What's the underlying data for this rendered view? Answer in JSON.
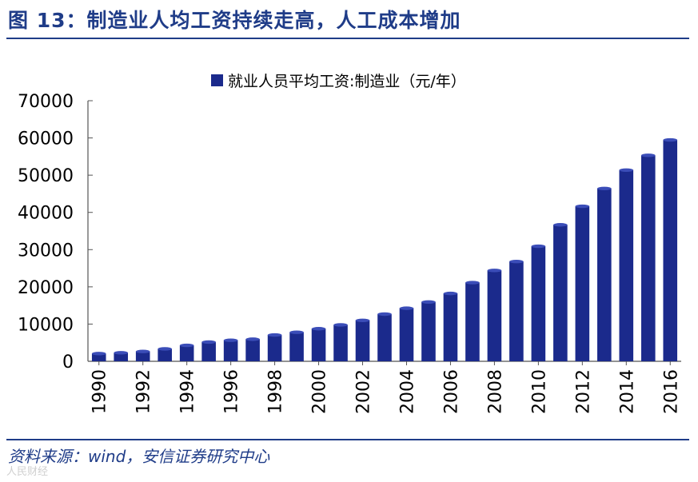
{
  "figure": {
    "title": "图 13：制造业人均工资持续走高，人工成本增加",
    "source": "资料来源：wind，安信证券研究中心",
    "watermark": "人民财经"
  },
  "colors": {
    "bar": "#1b2a8c",
    "title": "#1f3c88",
    "axis": "#555555"
  },
  "chart_data": {
    "type": "bar",
    "title": "",
    "xlabel": "",
    "ylabel": "",
    "legend": {
      "position": "top",
      "entries": [
        "就业人员平均工资:制造业（元/年）"
      ]
    },
    "ylim": [
      0,
      70000
    ],
    "yticks": [
      "0",
      "10000",
      "20000",
      "30000",
      "40000",
      "50000",
      "60000",
      "70000"
    ],
    "grid": false,
    "categories": [
      "1990",
      "1991",
      "1992",
      "1993",
      "1994",
      "1995",
      "1996",
      "1997",
      "1998",
      "1999",
      "2000",
      "2001",
      "2002",
      "2003",
      "2004",
      "2005",
      "2006",
      "2007",
      "2008",
      "2009",
      "2010",
      "2011",
      "2012",
      "2013",
      "2014",
      "2015",
      "2016"
    ],
    "xtick_labels": [
      "1990",
      "1992",
      "1994",
      "1996",
      "1998",
      "2000",
      "2002",
      "2004",
      "2006",
      "2008",
      "2010",
      "2012",
      "2014",
      "2016"
    ],
    "series": [
      {
        "name": "就业人员平均工资:制造业（元/年）",
        "values": [
          2073,
          2289,
          2635,
          3348,
          4283,
          5169,
          5642,
          5933,
          7064,
          7794,
          8750,
          9774,
          11001,
          12671,
          14251,
          15934,
          18225,
          21144,
          24404,
          26810,
          30916,
          36665,
          41650,
          46431,
          51369,
          55324,
          59470
        ]
      }
    ]
  }
}
